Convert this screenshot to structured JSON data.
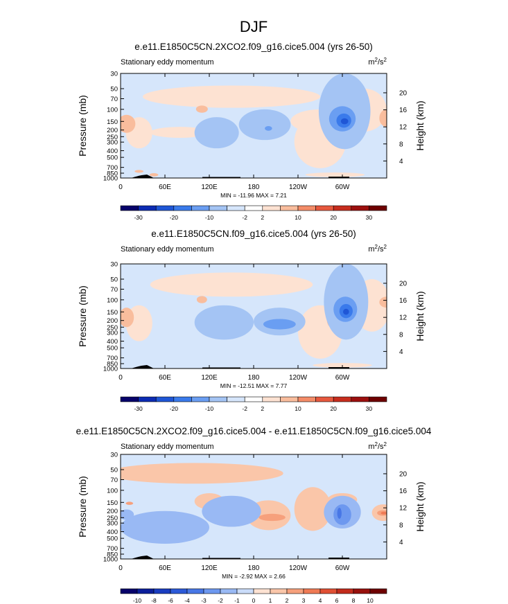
{
  "figure": {
    "main_title": "DJF"
  },
  "chart_data": [
    {
      "type": "heatmap",
      "title": "e.e11.E1850C5CN.2XCO2.f09_g16.cice5.004 (yrs 26-50)",
      "left_label": "Stationary eddy momentum",
      "units": "m²/s²",
      "units_base": "m",
      "units_sup1": "2",
      "units_mid": "/s",
      "units_sup2": "2",
      "ylabel": "Pressure (mb)",
      "ylabel_right": "Height (km)",
      "xticks": [
        "0",
        "60E",
        "120E",
        "180",
        "120W",
        "60W"
      ],
      "yticks": [
        "30",
        "50",
        "70",
        "100",
        "150",
        "200",
        "250",
        "300",
        "400",
        "500",
        "700",
        "850",
        "1000"
      ],
      "yticks_right": [
        "20",
        "16",
        "12",
        "8",
        "4"
      ],
      "ylim": [
        1000,
        30
      ],
      "stats": "MIN = -11.96  MAX =  7.21",
      "colorbar_levels": [
        "-30",
        "-20",
        "-10",
        "-2",
        "2",
        "10",
        "20",
        "30"
      ],
      "colors": [
        "#07026a",
        "#0c2bb3",
        "#1f56d6",
        "#3a7aeb",
        "#6a9ef2",
        "#a4c4f4",
        "#d6e6fb",
        "#ffffff",
        "#fde2d2",
        "#f9bd9d",
        "#f48c68",
        "#e7583e",
        "#c72d1e",
        "#9c0f0e",
        "#6e0000"
      ],
      "features": [
        {
          "kind": "positive",
          "level": 1,
          "cx": 25,
          "cy": 250,
          "rx": 18,
          "ry": 120
        },
        {
          "kind": "positive",
          "level": 1,
          "cx": 80,
          "cy": 220,
          "rx": 40,
          "ry": 40
        },
        {
          "kind": "positive",
          "level": 1,
          "cx": 150,
          "cy": 70,
          "rx": 120,
          "ry": 25
        },
        {
          "kind": "positive",
          "level": 1,
          "cx": 270,
          "cy": 420,
          "rx": 35,
          "ry": 300
        },
        {
          "kind": "positive",
          "level": 1,
          "cx": 290,
          "cy": 900,
          "rx": 40,
          "ry": 70
        },
        {
          "kind": "positive",
          "level": 1,
          "cx": 330,
          "cy": 130,
          "rx": 30,
          "ry": 80
        },
        {
          "kind": "positive",
          "level": 1,
          "cx": 270,
          "cy": 160,
          "rx": 40,
          "ry": 60
        },
        {
          "kind": "positive",
          "level": 2,
          "cx": 8,
          "cy": 170,
          "rx": 12,
          "ry": 50
        },
        {
          "kind": "positive",
          "level": 2,
          "cx": 110,
          "cy": 100,
          "rx": 8,
          "ry": 12
        },
        {
          "kind": "positive",
          "level": 2,
          "cx": 360,
          "cy": 140,
          "rx": 10,
          "ry": 40
        },
        {
          "kind": "positive",
          "level": 2,
          "cx": 25,
          "cy": 800,
          "rx": 6,
          "ry": 30
        },
        {
          "kind": "positive",
          "level": 2,
          "cx": 45,
          "cy": 900,
          "rx": 6,
          "ry": 50
        },
        {
          "kind": "negative",
          "level": 1,
          "cx": 195,
          "cy": 190,
          "rx": 35,
          "ry": 90
        },
        {
          "kind": "negative",
          "level": 1,
          "cx": 303,
          "cy": 200,
          "rx": 35,
          "ry": 180
        },
        {
          "kind": "negative",
          "level": 1,
          "cx": 130,
          "cy": 250,
          "rx": 30,
          "ry": 120
        },
        {
          "kind": "negative",
          "level": 2,
          "cx": 300,
          "cy": 150,
          "rx": 18,
          "ry": 60
        },
        {
          "kind": "negative",
          "level": 3,
          "cx": 302,
          "cy": 150,
          "rx": 10,
          "ry": 35
        },
        {
          "kind": "negative",
          "level": 4,
          "cx": 303,
          "cy": 150,
          "rx": 5,
          "ry": 15
        },
        {
          "kind": "negative",
          "level": 2,
          "cx": 200,
          "cy": 190,
          "rx": 5,
          "ry": 15
        }
      ]
    },
    {
      "type": "heatmap",
      "title": "e.e11.E1850C5CN.f09_g16.cice5.004 (yrs 26-50)",
      "left_label": "Stationary eddy momentum",
      "units": "m²/s²",
      "units_base": "m",
      "units_sup1": "2",
      "units_mid": "/s",
      "units_sup2": "2",
      "ylabel": "Pressure (mb)",
      "ylabel_right": "Height (km)",
      "xticks": [
        "0",
        "60E",
        "120E",
        "180",
        "120W",
        "60W"
      ],
      "yticks": [
        "30",
        "50",
        "70",
        "100",
        "150",
        "200",
        "250",
        "300",
        "400",
        "500",
        "700",
        "850",
        "1000"
      ],
      "yticks_right": [
        "20",
        "16",
        "12",
        "8",
        "4"
      ],
      "ylim": [
        1000,
        30
      ],
      "stats": "MIN = -12.51  MAX =  7.77",
      "colorbar_levels": [
        "-30",
        "-20",
        "-10",
        "-2",
        "2",
        "10",
        "20",
        "30"
      ],
      "colors": [
        "#07026a",
        "#0c2bb3",
        "#1f56d6",
        "#3a7aeb",
        "#6a9ef2",
        "#a4c4f4",
        "#d6e6fb",
        "#ffffff",
        "#fde2d2",
        "#f9bd9d",
        "#f48c68",
        "#e7583e",
        "#c72d1e",
        "#9c0f0e",
        "#6e0000"
      ],
      "features": [
        {
          "kind": "positive",
          "level": 1,
          "cx": 25,
          "cy": 260,
          "rx": 18,
          "ry": 140
        },
        {
          "kind": "positive",
          "level": 1,
          "cx": 150,
          "cy": 65,
          "rx": 110,
          "ry": 25
        },
        {
          "kind": "positive",
          "level": 1,
          "cx": 270,
          "cy": 420,
          "rx": 30,
          "ry": 300
        },
        {
          "kind": "positive",
          "level": 1,
          "cx": 300,
          "cy": 900,
          "rx": 40,
          "ry": 70
        },
        {
          "kind": "positive",
          "level": 1,
          "cx": 340,
          "cy": 170,
          "rx": 25,
          "ry": 120
        },
        {
          "kind": "positive",
          "level": 1,
          "cx": 280,
          "cy": 200,
          "rx": 15,
          "ry": 60
        },
        {
          "kind": "positive",
          "level": 2,
          "cx": 8,
          "cy": 190,
          "rx": 10,
          "ry": 60
        },
        {
          "kind": "positive",
          "level": 2,
          "cx": 110,
          "cy": 100,
          "rx": 7,
          "ry": 12
        },
        {
          "kind": "positive",
          "level": 2,
          "cx": 285,
          "cy": 200,
          "rx": 6,
          "ry": 50
        },
        {
          "kind": "positive",
          "level": 2,
          "cx": 360,
          "cy": 110,
          "rx": 10,
          "ry": 20
        },
        {
          "kind": "negative",
          "level": 1,
          "cx": 140,
          "cy": 250,
          "rx": 40,
          "ry": 130
        },
        {
          "kind": "negative",
          "level": 1,
          "cx": 215,
          "cy": 230,
          "rx": 35,
          "ry": 100
        },
        {
          "kind": "negative",
          "level": 1,
          "cx": 305,
          "cy": 200,
          "rx": 30,
          "ry": 180
        },
        {
          "kind": "negative",
          "level": 2,
          "cx": 215,
          "cy": 230,
          "rx": 22,
          "ry": 40
        },
        {
          "kind": "negative",
          "level": 2,
          "cx": 304,
          "cy": 150,
          "rx": 16,
          "ry": 60
        },
        {
          "kind": "negative",
          "level": 3,
          "cx": 305,
          "cy": 150,
          "rx": 9,
          "ry": 35
        },
        {
          "kind": "negative",
          "level": 4,
          "cx": 305,
          "cy": 150,
          "rx": 4,
          "ry": 15
        }
      ]
    },
    {
      "type": "heatmap",
      "title": "e.e11.E1850C5CN.2XCO2.f09_g16.cice5.004 - e.e11.E1850C5CN.f09_g16.cice5.004",
      "left_label": "Stationary eddy momentum",
      "units": "m²/s²",
      "units_base": "m",
      "units_sup1": "2",
      "units_mid": "/s",
      "units_sup2": "2",
      "ylabel": "Pressure (mb)",
      "ylabel_right": "Height (km)",
      "xticks": [
        "0",
        "60E",
        "120E",
        "180",
        "120W",
        "60W"
      ],
      "yticks": [
        "30",
        "50",
        "70",
        "100",
        "150",
        "200",
        "250",
        "300",
        "400",
        "500",
        "700",
        "850",
        "1000"
      ],
      "yticks_right": [
        "20",
        "16",
        "12",
        "8",
        "4"
      ],
      "ylim": [
        1000,
        30
      ],
      "stats": "MIN = -2.92  MAX =  2.66",
      "colorbar_levels": [
        "-10",
        "-8",
        "-6",
        "-4",
        "-3",
        "-2",
        "-1",
        "0",
        "1",
        "2",
        "3",
        "4",
        "6",
        "8",
        "10"
      ],
      "colors": [
        "#07026a",
        "#0c1f9a",
        "#1a3dc0",
        "#2c5ad8",
        "#4877e6",
        "#6d98ef",
        "#99b9f4",
        "#cadcf9",
        "#fde2d2",
        "#fac6a9",
        "#f6a07c",
        "#ef7a55",
        "#e05034",
        "#c22b1c",
        "#97100c",
        "#6e0000"
      ],
      "features": [
        {
          "kind": "positive",
          "level": 1,
          "cx": 100,
          "cy": 60,
          "rx": 120,
          "ry": 20
        },
        {
          "kind": "positive",
          "level": 1,
          "cx": 200,
          "cy": 260,
          "rx": 30,
          "ry": 120
        },
        {
          "kind": "positive",
          "level": 1,
          "cx": 260,
          "cy": 240,
          "rx": 25,
          "ry": 150
        },
        {
          "kind": "positive",
          "level": 1,
          "cx": 355,
          "cy": 220,
          "rx": 15,
          "ry": 60
        },
        {
          "kind": "positive",
          "level": 1,
          "cx": 300,
          "cy": 140,
          "rx": 20,
          "ry": 30
        },
        {
          "kind": "positive",
          "level": 1,
          "cx": 120,
          "cy": 150,
          "rx": 20,
          "ry": 40
        },
        {
          "kind": "positive",
          "level": 2,
          "cx": 205,
          "cy": 250,
          "rx": 18,
          "ry": 30
        },
        {
          "kind": "positive",
          "level": 2,
          "cx": 355,
          "cy": 215,
          "rx": 8,
          "ry": 20
        },
        {
          "kind": "positive",
          "level": 3,
          "cx": 356,
          "cy": 215,
          "rx": 4,
          "ry": 10
        },
        {
          "kind": "positive",
          "level": 2,
          "cx": 12,
          "cy": 155,
          "rx": 5,
          "ry": 8
        },
        {
          "kind": "negative",
          "level": 1,
          "cx": 150,
          "cy": 230,
          "rx": 40,
          "ry": 110
        },
        {
          "kind": "negative",
          "level": 1,
          "cx": 300,
          "cy": 240,
          "rx": 25,
          "ry": 120
        },
        {
          "kind": "negative",
          "level": 1,
          "cx": 60,
          "cy": 400,
          "rx": 60,
          "ry": 200
        },
        {
          "kind": "negative",
          "level": 1,
          "cx": 8,
          "cy": 230,
          "rx": 10,
          "ry": 40
        },
        {
          "kind": "negative",
          "level": 2,
          "cx": 300,
          "cy": 240,
          "rx": 12,
          "ry": 80
        },
        {
          "kind": "negative",
          "level": 3,
          "cx": 296,
          "cy": 220,
          "rx": 3,
          "ry": 40
        }
      ]
    }
  ]
}
